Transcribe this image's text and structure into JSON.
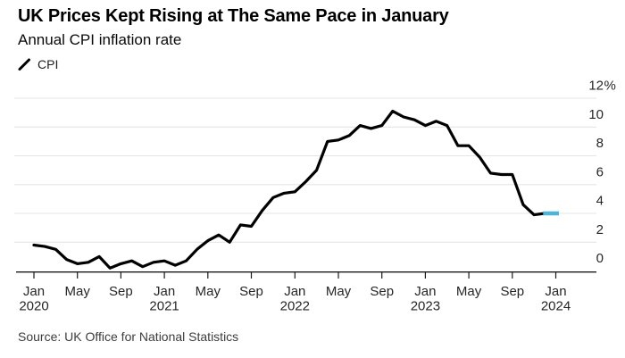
{
  "header": {
    "title": "UK Prices Kept Rising at The Same Pace in January",
    "subtitle": "Annual CPI inflation rate"
  },
  "source_note": "Source: UK Office for National Statistics",
  "colors": {
    "line": "#000000",
    "highlight": "#4db5d8",
    "grid": "#e5e5e5",
    "axis": "#1a1a1a",
    "tick_text": "#262626"
  },
  "chart_data": {
    "type": "line",
    "title": "UK Prices Kept Rising at The Same Pace in January",
    "subtitle": "Annual CPI inflation rate",
    "unit": "%",
    "grid": "horizontal",
    "y_axis_side": "right",
    "legend_position": "top-left",
    "ylim": [
      0,
      12
    ],
    "y_ticks": [
      0,
      2,
      4,
      6,
      8,
      10,
      12
    ],
    "y_top_label": "12%",
    "x": [
      "Jan 2020",
      "Feb 2020",
      "Mar 2020",
      "Apr 2020",
      "May 2020",
      "Jun 2020",
      "Jul 2020",
      "Aug 2020",
      "Sep 2020",
      "Oct 2020",
      "Nov 2020",
      "Dec 2020",
      "Jan 2021",
      "Feb 2021",
      "Mar 2021",
      "Apr 2021",
      "May 2021",
      "Jun 2021",
      "Jul 2021",
      "Aug 2021",
      "Sep 2021",
      "Oct 2021",
      "Nov 2021",
      "Dec 2021",
      "Jan 2022",
      "Feb 2022",
      "Mar 2022",
      "Apr 2022",
      "May 2022",
      "Jun 2022",
      "Jul 2022",
      "Aug 2022",
      "Sep 2022",
      "Oct 2022",
      "Nov 2022",
      "Dec 2022",
      "Jan 2023",
      "Feb 2023",
      "Mar 2023",
      "Apr 2023",
      "May 2023",
      "Jun 2023",
      "Jul 2023",
      "Aug 2023",
      "Sep 2023",
      "Oct 2023",
      "Nov 2023",
      "Dec 2023",
      "Jan 2024"
    ],
    "series": [
      {
        "name": "CPI",
        "marker": "diagonal-line",
        "color": "#000000",
        "values": [
          1.8,
          1.7,
          1.5,
          0.8,
          0.5,
          0.6,
          1.0,
          0.2,
          0.5,
          0.7,
          0.3,
          0.6,
          0.7,
          0.4,
          0.7,
          1.5,
          2.1,
          2.5,
          2.0,
          3.2,
          3.1,
          4.2,
          5.1,
          5.4,
          5.5,
          6.2,
          7.0,
          9.0,
          9.1,
          9.4,
          10.1,
          9.9,
          10.1,
          11.1,
          10.7,
          10.5,
          10.1,
          10.4,
          10.1,
          8.7,
          8.7,
          7.9,
          6.8,
          6.7,
          6.7,
          4.6,
          3.9,
          4.0,
          4.0
        ]
      }
    ],
    "highlight": {
      "from_index": 47,
      "to_index": 48,
      "from": "Dec 2023",
      "to": "Jan 2024",
      "value": 4.0,
      "color": "#4db5d8"
    },
    "x_ticks": [
      {
        "index": 0,
        "month": "Jan",
        "year": "2020"
      },
      {
        "index": 4,
        "month": "May"
      },
      {
        "index": 8,
        "month": "Sep"
      },
      {
        "index": 12,
        "month": "Jan",
        "year": "2021"
      },
      {
        "index": 16,
        "month": "May"
      },
      {
        "index": 20,
        "month": "Sep"
      },
      {
        "index": 24,
        "month": "Jan",
        "year": "2022"
      },
      {
        "index": 28,
        "month": "May"
      },
      {
        "index": 32,
        "month": "Sep"
      },
      {
        "index": 36,
        "month": "Jan",
        "year": "2023"
      },
      {
        "index": 40,
        "month": "May"
      },
      {
        "index": 44,
        "month": "Sep"
      },
      {
        "index": 48,
        "month": "Jan",
        "year": "2024"
      }
    ]
  }
}
